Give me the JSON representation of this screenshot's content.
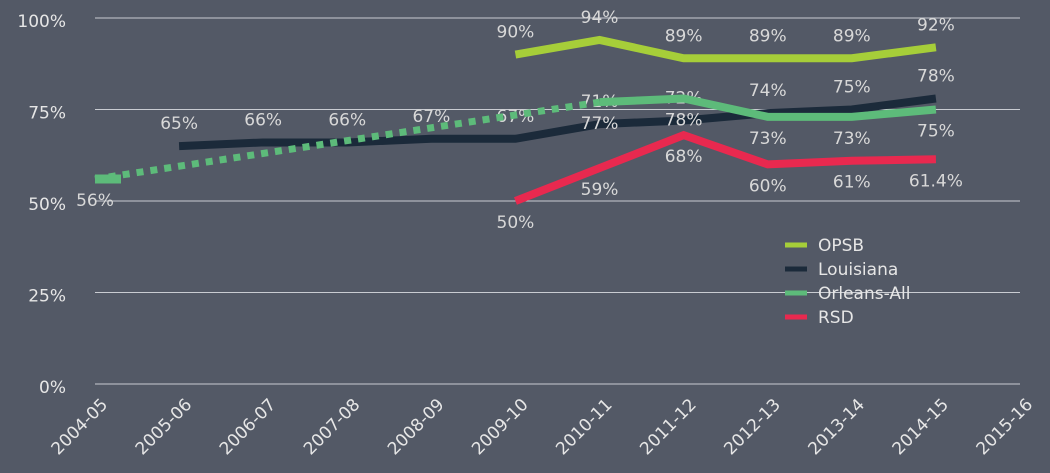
{
  "chart_data": {
    "type": "line",
    "categories": [
      "2004-05",
      "2005-06",
      "2006-07",
      "2007-08",
      "2008-09",
      "2009-10",
      "2010-11",
      "2011-12",
      "2012-13",
      "2013-14",
      "2014-15",
      "2015-16"
    ],
    "series": [
      {
        "name": "OPSB",
        "color": "#a6ce39",
        "values": [
          null,
          null,
          null,
          null,
          null,
          90,
          94,
          89,
          89,
          89,
          92,
          null
        ],
        "value_labels": [
          null,
          null,
          null,
          null,
          null,
          "90%",
          "94%",
          "89%",
          "89%",
          "89%",
          "92%",
          null
        ],
        "label_position": "above"
      },
      {
        "name": "Louisiana",
        "color": "#1b2a3a",
        "values": [
          null,
          65,
          66,
          66,
          67,
          67,
          71,
          72,
          74,
          75,
          78,
          null
        ],
        "value_labels": [
          null,
          "65%",
          "66%",
          "66%",
          "67%",
          "67%",
          "71%",
          "72%",
          "74%",
          "75%",
          "78%",
          null
        ],
        "label_position": "above"
      },
      {
        "name": "Orleans-All",
        "color": "#5dbb7a",
        "values": [
          56,
          null,
          null,
          null,
          null,
          null,
          77,
          78,
          73,
          73,
          75,
          null
        ],
        "value_labels": [
          "56%",
          null,
          null,
          null,
          null,
          null,
          "77%",
          "78%",
          "73%",
          "73%",
          "75%",
          null
        ],
        "label_position": "below",
        "gap_style": "dotted"
      },
      {
        "name": "RSD",
        "color": "#e8294f",
        "values": [
          null,
          null,
          null,
          null,
          null,
          50,
          59,
          68,
          60,
          61,
          61.4,
          null
        ],
        "value_labels": [
          null,
          null,
          null,
          null,
          null,
          "50%",
          "59%",
          "68%",
          "60%",
          "61%",
          "61.4%",
          null
        ],
        "label_position": "below"
      }
    ],
    "ylim": [
      0,
      100
    ],
    "yticks": [
      {
        "value": 0,
        "label": "0%"
      },
      {
        "value": 25,
        "label": "25%"
      },
      {
        "value": 50,
        "label": "50%"
      },
      {
        "value": 75,
        "label": "75%"
      },
      {
        "value": 100,
        "label": "100%"
      }
    ],
    "grid": true,
    "legend": "right"
  }
}
